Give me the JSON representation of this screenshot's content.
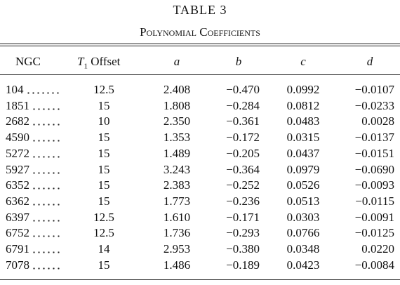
{
  "table": {
    "title": "TABLE 3",
    "subtitle": "Polynomial Coefficients",
    "header": {
      "ngc": "NGC",
      "offset_symbol": "T",
      "offset_subscript": "1",
      "offset_text": "Offset",
      "a": "a",
      "b": "b",
      "c": "c",
      "d": "d"
    },
    "rows": [
      [
        "104",
        "12.5",
        "2.408",
        "−0.470",
        "0.0992",
        "−0.0107"
      ],
      [
        "1851",
        "15",
        "1.808",
        "−0.284",
        "0.0812",
        "−0.0233"
      ],
      [
        "2682",
        "10",
        "2.350",
        "−0.361",
        "0.0483",
        "0.0028"
      ],
      [
        "4590",
        "15",
        "1.353",
        "−0.172",
        "0.0315",
        "−0.0137"
      ],
      [
        "5272",
        "15",
        "1.489",
        "−0.205",
        "0.0437",
        "−0.0151"
      ],
      [
        "5927",
        "15",
        "3.243",
        "−0.364",
        "0.0979",
        "−0.0690"
      ],
      [
        "6352",
        "15",
        "2.383",
        "−0.252",
        "0.0526",
        "−0.0093"
      ],
      [
        "6362",
        "15",
        "1.773",
        "−0.236",
        "0.0513",
        "−0.0115"
      ],
      [
        "6397",
        "12.5",
        "1.610",
        "−0.171",
        "0.0303",
        "−0.0091"
      ],
      [
        "6752",
        "12.5",
        "1.736",
        "−0.293",
        "0.0766",
        "−0.0125"
      ],
      [
        "6791",
        "14",
        "2.953",
        "−0.380",
        "0.0348",
        "0.0220"
      ],
      [
        "7078",
        "15",
        "1.486",
        "−0.189",
        "0.0423",
        "−0.0084"
      ]
    ]
  }
}
